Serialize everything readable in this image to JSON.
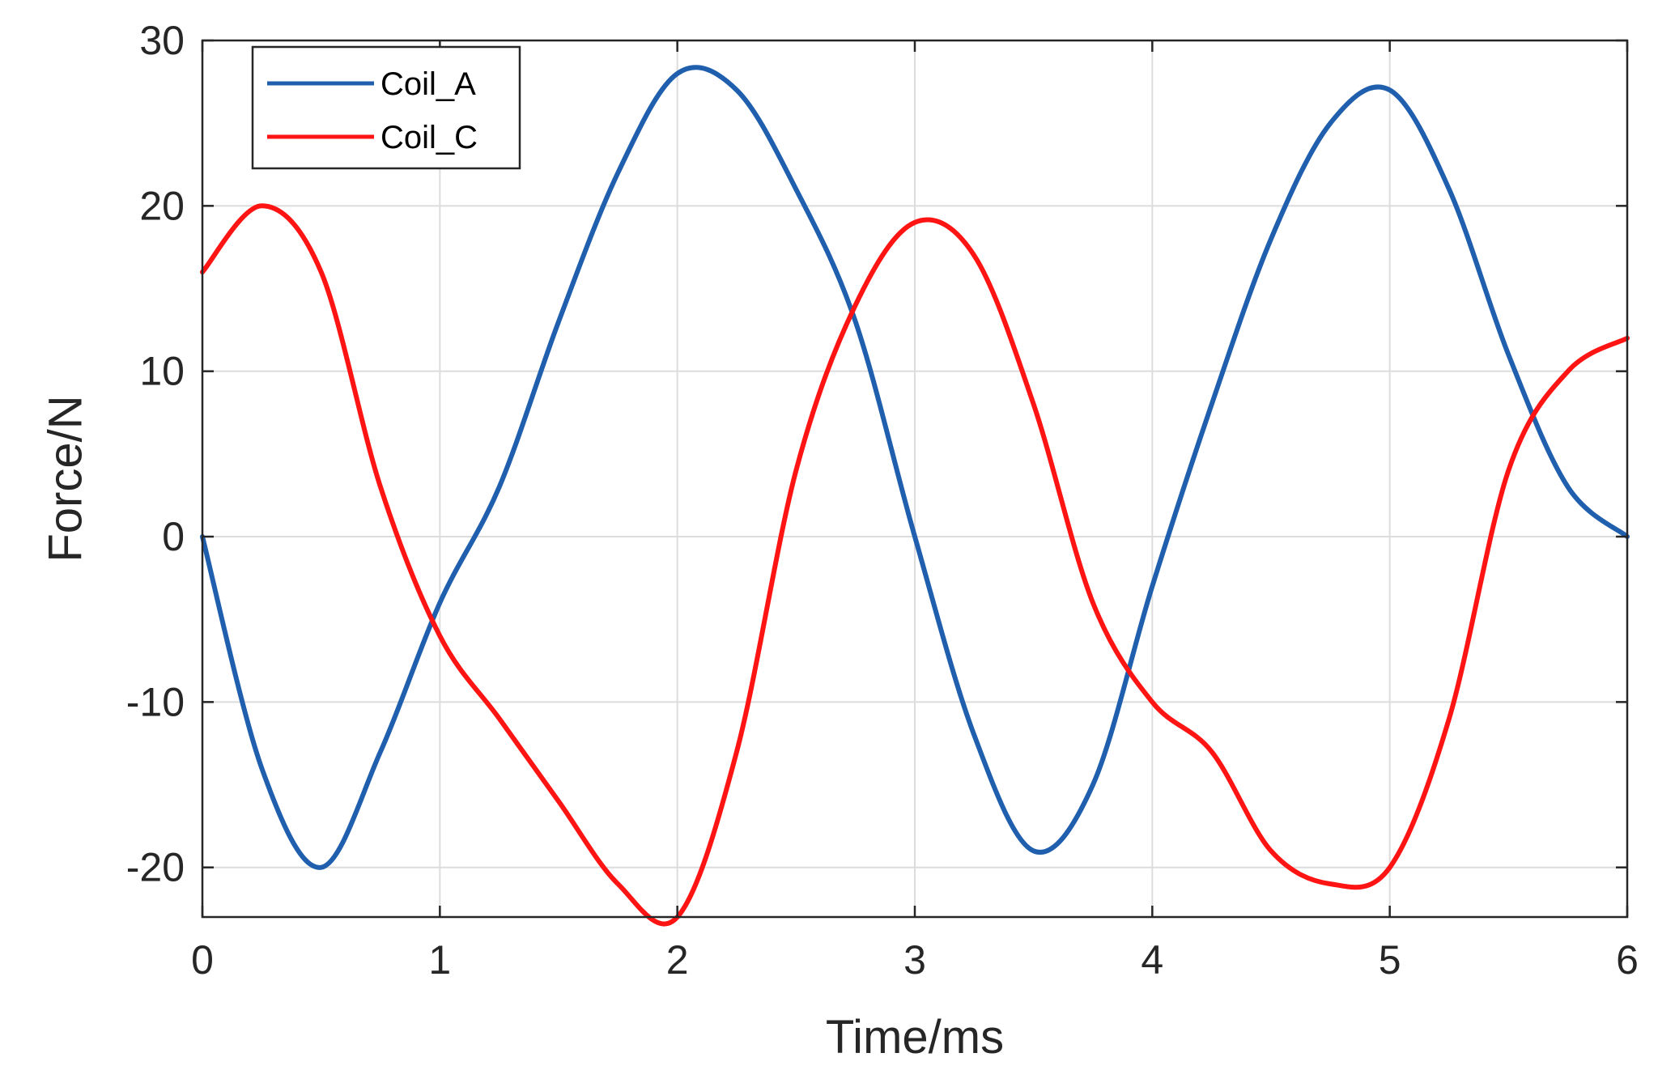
{
  "chart_data": {
    "type": "line",
    "title": "",
    "xlabel": "Time/ms",
    "ylabel": "Force/N",
    "xlim": [
      0,
      6
    ],
    "ylim": [
      -23,
      30
    ],
    "xticks": [
      0,
      1,
      2,
      3,
      4,
      5,
      6
    ],
    "yticks": [
      -20,
      -10,
      0,
      10,
      20,
      30
    ],
    "xtick_labels": [
      "0",
      "1",
      "2",
      "3",
      "4",
      "5",
      "6"
    ],
    "ytick_labels": [
      "-20",
      "-10",
      "0",
      "10",
      "20",
      "30"
    ],
    "grid": true,
    "legend_position": "top-left",
    "x": [
      0,
      0.25,
      0.5,
      0.75,
      1.0,
      1.25,
      1.5,
      1.75,
      2.0,
      2.25,
      2.5,
      2.75,
      3.0,
      3.25,
      3.5,
      3.75,
      4.0,
      4.25,
      4.5,
      4.75,
      5.0,
      5.25,
      5.5,
      5.75,
      6.0
    ],
    "series": [
      {
        "name": "Coil_A",
        "color": "#1f5fad",
        "values": [
          0,
          -14,
          -20,
          -13,
          -4,
          3,
          13,
          22,
          28,
          27,
          21,
          13,
          0,
          -12,
          -19,
          -15,
          -3,
          8,
          18,
          25,
          27,
          21,
          11,
          3,
          0
        ]
      },
      {
        "name": "Coil_C",
        "color": "#ff1414",
        "values": [
          16,
          20,
          16,
          3,
          -6,
          -11,
          -16,
          -21,
          -23,
          -13,
          4,
          14,
          19,
          17,
          8,
          -4,
          -10,
          -13,
          -19,
          -21,
          -20,
          -11,
          4,
          10,
          12
        ]
      }
    ]
  }
}
